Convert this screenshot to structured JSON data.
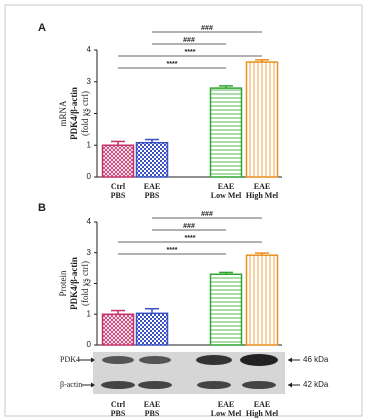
{
  "chart_data": [
    {
      "type": "bar",
      "panel": "A",
      "ylabel": [
        "mRNA",
        "PDK4/β-actin",
        "(fold vs ctrl)"
      ],
      "categories": [
        [
          "Ctrl",
          "PBS"
        ],
        [
          "EAE",
          "PBS"
        ],
        [
          "EAE",
          "Low Mel"
        ],
        [
          "EAE",
          "High Mel"
        ]
      ],
      "values": [
        1.0,
        1.08,
        2.8,
        3.62
      ],
      "errors": [
        0.12,
        0.1,
        0.07,
        0.07
      ],
      "colors": [
        "#c8306c",
        "#3a4fc4",
        "#2ea62e",
        "#e8901e"
      ],
      "patterns": [
        "crosshatch",
        "checker",
        "horizontal",
        "vertical"
      ],
      "ylim": [
        0,
        4
      ],
      "yticks": [
        0,
        1,
        2,
        3,
        4
      ],
      "annotations": [
        {
          "text": "###",
          "from": 1,
          "to": 3
        },
        {
          "text": "###",
          "from": 1,
          "to": 2
        },
        {
          "text": "****",
          "from": 0,
          "to": 3
        },
        {
          "text": "****",
          "from": 0,
          "to": 2
        }
      ]
    },
    {
      "type": "bar",
      "panel": "B",
      "ylabel": [
        "Protein",
        "PDK4/β-actin",
        "(fold vs ctrl)"
      ],
      "categories": [
        [
          "Ctrl",
          "PBS"
        ],
        [
          "EAE",
          "PBS"
        ],
        [
          "EAE",
          "Low Mel"
        ],
        [
          "EAE",
          "High Mel"
        ]
      ],
      "values": [
        1.0,
        1.03,
        2.3,
        2.92
      ],
      "errors": [
        0.12,
        0.15,
        0.06,
        0.07
      ],
      "colors": [
        "#c8306c",
        "#3a4fc4",
        "#2ea62e",
        "#e8901e"
      ],
      "patterns": [
        "crosshatch",
        "checker",
        "horizontal",
        "vertical"
      ],
      "ylim": [
        0,
        4
      ],
      "yticks": [
        0,
        1,
        2,
        3,
        4
      ],
      "annotations": [
        {
          "text": "###",
          "from": 1,
          "to": 3
        },
        {
          "text": "###",
          "from": 1,
          "to": 2
        },
        {
          "text": "****",
          "from": 0,
          "to": 3
        },
        {
          "text": "****",
          "from": 0,
          "to": 2
        }
      ]
    }
  ],
  "blot": {
    "rows": [
      {
        "label": "PDK4",
        "size": "46 kDa"
      },
      {
        "label": "β-actin",
        "size": "42 kDa"
      }
    ]
  }
}
